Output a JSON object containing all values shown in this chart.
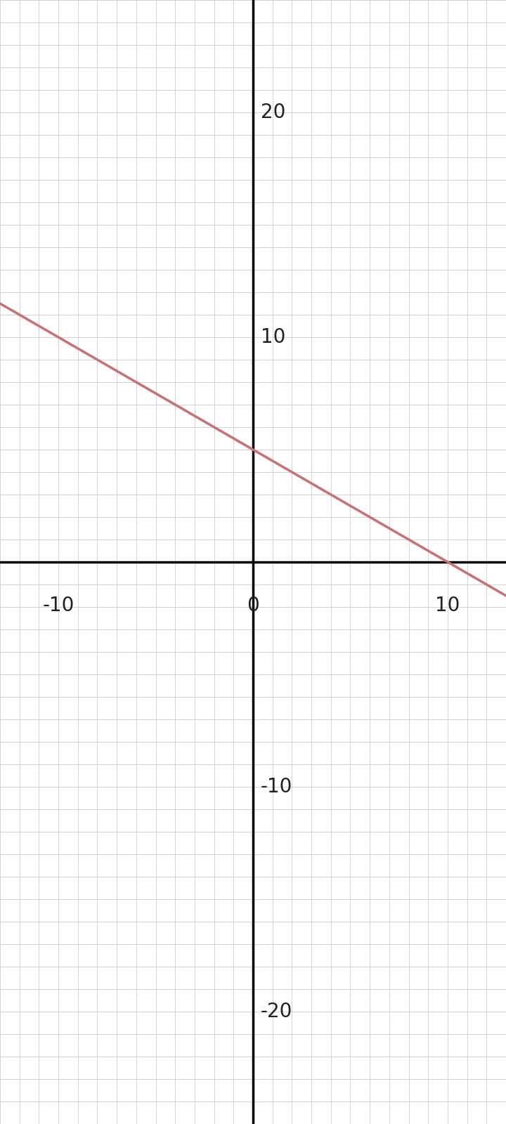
{
  "xlim": [
    -13,
    13
  ],
  "ylim": [
    -25,
    25
  ],
  "x_minor_step": 1,
  "y_minor_step": 1,
  "xtick_labels": [
    [
      -10,
      "-10"
    ],
    [
      0,
      "0"
    ],
    [
      10,
      "10"
    ]
  ],
  "ytick_labels": [
    [
      -20,
      "-20"
    ],
    [
      -10,
      "-10"
    ],
    [
      10,
      "10"
    ],
    [
      20,
      "20"
    ]
  ],
  "line_color": "#c97070",
  "line_width": 2.5,
  "slope": -0.5,
  "intercept": 5,
  "bg_color": "#ffffff",
  "axis_color": "#000000",
  "axis_linewidth": 2.5,
  "grid_color": "#cccccc",
  "grid_linewidth": 0.6,
  "tick_label_fontsize": 20,
  "tick_label_color": "#222222",
  "xlabel_offset_y": -1.5,
  "ylabel_offset_x": 0.4
}
